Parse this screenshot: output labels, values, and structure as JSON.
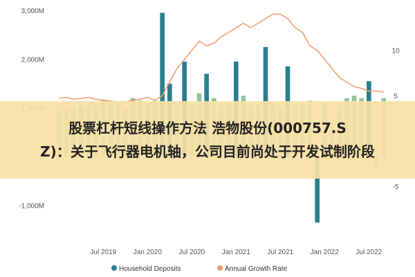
{
  "banner": {
    "line1": "股票杠杆短线操作方法 浩物股份(000757.S",
    "line2": "Z)：关于飞行器电机轴，公司目前尚处于开发试制阶段"
  },
  "colors": {
    "bars": "#2a7f8e",
    "line": "#f0a070",
    "banner": "#f8e1a5"
  },
  "chart_data": {
    "type": "bar",
    "series": [
      {
        "name": "Household Deposits",
        "type": "bar",
        "axis": "left",
        "x": [
          "2019-01",
          "2019-02",
          "2019-03",
          "2019-04",
          "2019-05",
          "2019-06",
          "2019-07",
          "2019-08",
          "2019-09",
          "2019-10",
          "2019-11",
          "2019-12",
          "2020-01",
          "2020-02",
          "2020-03",
          "2020-04",
          "2020-05",
          "2020-06",
          "2020-07",
          "2020-08",
          "2020-09",
          "2020-10",
          "2020-11",
          "2020-12",
          "2021-01",
          "2021-02",
          "2021-03",
          "2021-04",
          "2021-05",
          "2021-06",
          "2021-07",
          "2021-08",
          "2021-09",
          "2021-10",
          "2021-11",
          "2021-12",
          "2022-01",
          "2022-02",
          "2022-03",
          "2022-04",
          "2022-05",
          "2022-06",
          "2022-07",
          "2022-08",
          "2022-09"
        ],
        "values": [
          950,
          950,
          1000,
          1050,
          1050,
          1050,
          1150,
          1100,
          1100,
          1000,
          1200,
          1150,
          1100,
          1150,
          2950,
          1500,
          1100,
          1950,
          1100,
          1300,
          1700,
          1200,
          1050,
          1100,
          1950,
          1250,
          1050,
          1050,
          2250,
          1100,
          1000,
          1850,
          1050,
          1100,
          1150,
          -1350,
          1100,
          700,
          1050,
          1200,
          1250,
          1200,
          1550,
          -200,
          1200
        ],
        "highlight": [
          false,
          false,
          false,
          false,
          false,
          false,
          false,
          false,
          false,
          false,
          false,
          false,
          false,
          false,
          true,
          true,
          false,
          true,
          false,
          false,
          true,
          false,
          false,
          false,
          true,
          false,
          false,
          false,
          true,
          false,
          false,
          true,
          false,
          false,
          false,
          true,
          false,
          false,
          false,
          false,
          false,
          false,
          true,
          false,
          false
        ]
      },
      {
        "name": "Annual Growth Rate",
        "type": "line",
        "axis": "right",
        "x": [
          "2019-01",
          "2019-02",
          "2019-03",
          "2019-04",
          "2019-05",
          "2019-06",
          "2019-07",
          "2019-08",
          "2019-09",
          "2019-10",
          "2019-11",
          "2019-12",
          "2020-01",
          "2020-02",
          "2020-03",
          "2020-04",
          "2020-05",
          "2020-06",
          "2020-07",
          "2020-08",
          "2020-09",
          "2020-10",
          "2020-11",
          "2020-12",
          "2021-01",
          "2021-02",
          "2021-03",
          "2021-04",
          "2021-05",
          "2021-06",
          "2021-07",
          "2021-08",
          "2021-09",
          "2021-10",
          "2021-11",
          "2021-12",
          "2022-01",
          "2022-02",
          "2022-03",
          "2022-04",
          "2022-05",
          "2022-06",
          "2022-07",
          "2022-08",
          "2022-09"
        ],
        "values": [
          4.7,
          4.8,
          4.6,
          4.7,
          4.8,
          4.6,
          4.5,
          4.4,
          4.3,
          4.3,
          4.5,
          4.6,
          4.8,
          4.5,
          5.0,
          6.5,
          8.0,
          9.0,
          10.0,
          11.0,
          10.5,
          10.8,
          11.5,
          12.0,
          12.5,
          13.0,
          12.5,
          13.0,
          13.5,
          14.0,
          14.0,
          13.5,
          12.5,
          12.0,
          10.5,
          10.0,
          9.0,
          8.0,
          7.0,
          6.5,
          6.0,
          5.8,
          5.5,
          5.5,
          5.4
        ]
      }
    ],
    "x_ticks": [
      "Jul 2019",
      "Jan 2020",
      "Jul 2020",
      "Jan 2021",
      "Jul 2021",
      "Jan 2022",
      "Jul 2022"
    ],
    "x_tick_positions": [
      "2019-07",
      "2020-01",
      "2020-07",
      "2021-01",
      "2021-07",
      "2022-01",
      "2022-07"
    ],
    "y_left": {
      "ticks": [
        3000,
        2000,
        1000,
        0,
        -1000
      ],
      "labels": [
        "3,000M",
        "2,000M",
        "1,000M",
        "",
        "-1,000M"
      ],
      "lim": [
        -1700,
        3100
      ]
    },
    "y_right": {
      "ticks": [
        10,
        5,
        0,
        -5
      ],
      "labels": [
        "10",
        "5",
        "",
        "-5"
      ],
      "lim": [
        -10.9,
        14.95
      ]
    },
    "legend": {
      "placement": "bottom",
      "entries": [
        "Household Deposits",
        "Annual Growth Rate"
      ]
    },
    "grid": false
  }
}
